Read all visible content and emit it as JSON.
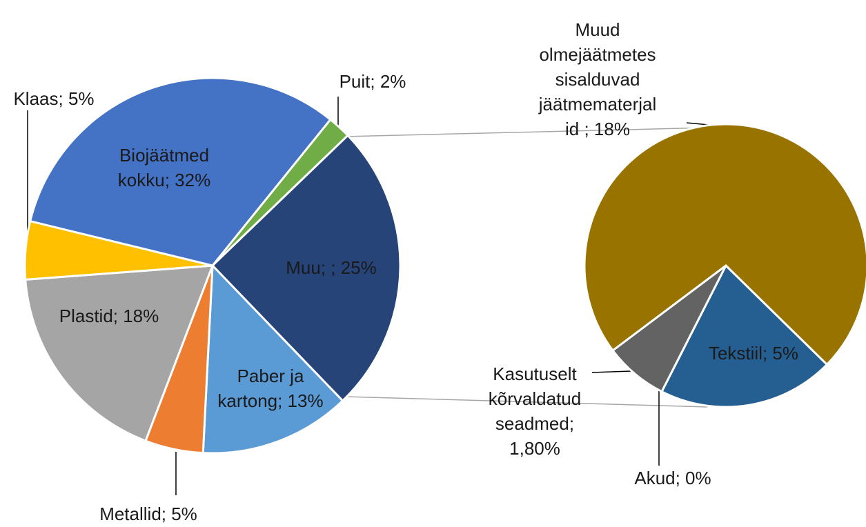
{
  "chart_data": [
    {
      "type": "pie",
      "labels": [
        "Puit; 2%",
        "Muu; ; 25%",
        "Paber ja\nkartong; 13%",
        "Metallid; 5%",
        "Plastid; 18%",
        "Klaas; 5%",
        "Biojäätmed\nkokku; 32%"
      ],
      "values": [
        2,
        25,
        13,
        5,
        18,
        5,
        32
      ],
      "colors": [
        "#70ad47",
        "#264478",
        "#5b9bd5",
        "#ed7d31",
        "#a5a5a5",
        "#ffc000",
        "#4472c4"
      ]
    },
    {
      "type": "pie",
      "labels": [
        "Tekstiil; 5%",
        "Akud; 0%",
        "Kasutuselt\nkõrvaldatud\nseadmed;\n1,80%",
        "Muud\nolmejäätmetes\nsisalduvad\njäätmematerjal\nid ; 18%"
      ],
      "values": [
        5,
        0,
        1.8,
        18
      ],
      "colors": [
        "#255e91",
        "#636363",
        "#636363",
        "#997300"
      ]
    }
  ]
}
